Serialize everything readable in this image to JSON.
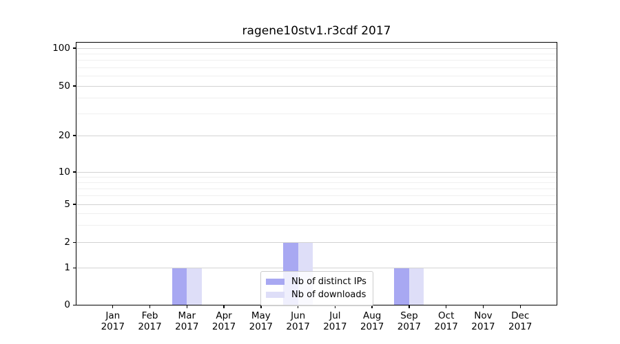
{
  "chart_data": {
    "type": "bar",
    "title": "ragene10stv1.r3cdf 2017",
    "year": "2017",
    "categories": [
      "Jan",
      "Feb",
      "Mar",
      "Apr",
      "May",
      "Jun",
      "Jul",
      "Aug",
      "Sep",
      "Oct",
      "Nov",
      "Dec"
    ],
    "series": [
      {
        "name": "Nb of distinct IPs",
        "color": "#a8a8f2",
        "values": [
          0,
          0,
          1,
          0,
          0,
          2,
          0,
          0,
          1,
          0,
          0,
          0
        ]
      },
      {
        "name": "Nb of downloads",
        "color": "#dedef8",
        "values": [
          0,
          0,
          1,
          0,
          0,
          2,
          0,
          0,
          1,
          0,
          0,
          0
        ]
      }
    ],
    "y_axis": {
      "scale": "asinh-like (log above 1, linear to 0)",
      "ticks": [
        0,
        1,
        2,
        5,
        10,
        20,
        50,
        100
      ],
      "minor_ticks": [
        3,
        4,
        6,
        7,
        8,
        9,
        30,
        40,
        60,
        70,
        80,
        90
      ],
      "range": [
        0,
        112
      ]
    },
    "x_axis": {
      "tick_label_lines": 2
    },
    "legend": {
      "position": "lower center",
      "entries": [
        "Nb of distinct IPs",
        "Nb of downloads"
      ]
    },
    "style": {
      "major_grid_color": "#d2d2d2",
      "minor_grid_color": "#efefef",
      "spine_color": "#000000",
      "background": "#ffffff"
    }
  }
}
